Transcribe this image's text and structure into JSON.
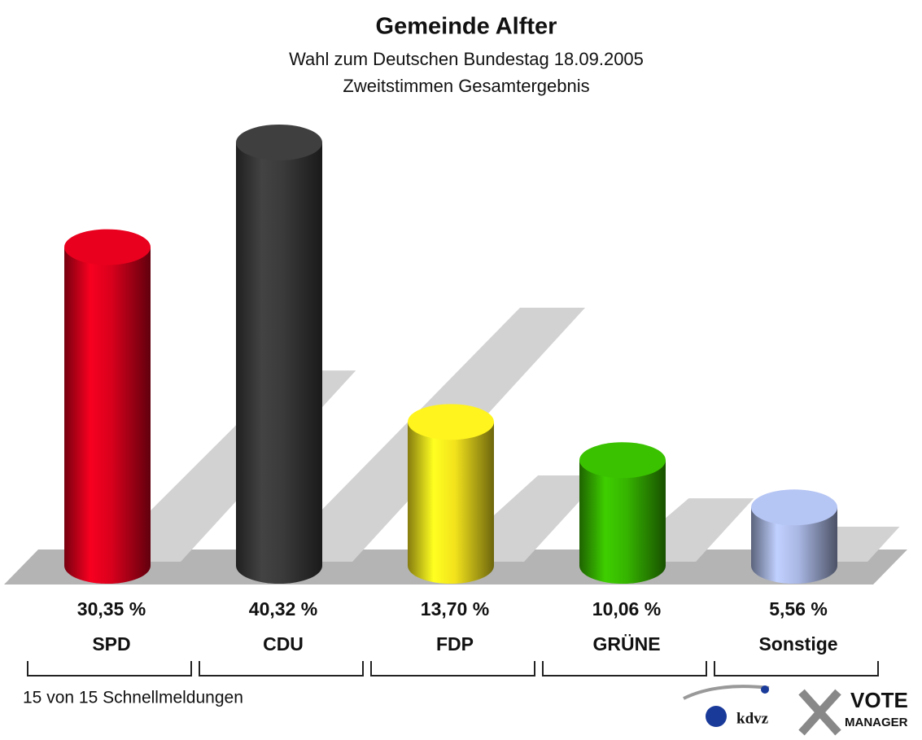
{
  "chart_data": {
    "type": "bar",
    "title": "Gemeinde Alfter",
    "subtitle": [
      "Wahl zum Deutschen Bundestag 18.09.2005",
      "Zweitstimmen Gesamtergebnis"
    ],
    "categories": [
      "SPD",
      "CDU",
      "FDP",
      "GRÜNE",
      "Sonstige"
    ],
    "values": [
      30.35,
      40.32,
      13.7,
      10.06,
      5.56
    ],
    "value_labels": [
      "30,35 %",
      "40,32 %",
      "13,70 %",
      "10,06 %",
      "5,56 %"
    ],
    "colors": [
      "#d8001c",
      "#3a3a3a",
      "#f2e21c",
      "#36b400",
      "#a8b6e2"
    ],
    "footnote": "15 von 15 Schnellmeldungen",
    "logos": [
      "kdvz",
      "VOTE",
      "MANAGER"
    ]
  }
}
